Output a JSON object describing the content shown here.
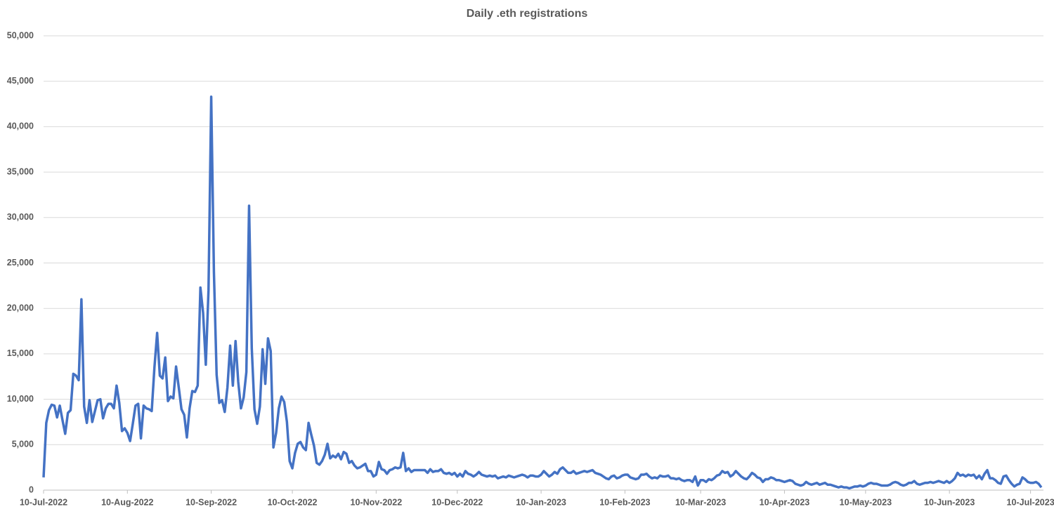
{
  "chart_data": {
    "type": "line",
    "title": "Daily .eth registrations",
    "x": [
      "2022-07-10",
      "2022-07-11",
      "2022-07-12",
      "2022-07-13",
      "2022-07-14",
      "2022-07-15",
      "2022-07-16",
      "2022-07-17",
      "2022-07-18",
      "2022-07-19",
      "2022-07-20",
      "2022-07-21",
      "2022-07-22",
      "2022-07-23",
      "2022-07-24",
      "2022-07-25",
      "2022-07-26",
      "2022-07-27",
      "2022-07-28",
      "2022-07-29",
      "2022-07-30",
      "2022-07-31",
      "2022-08-01",
      "2022-08-02",
      "2022-08-03",
      "2022-08-04",
      "2022-08-05",
      "2022-08-06",
      "2022-08-07",
      "2022-08-08",
      "2022-08-09",
      "2022-08-10",
      "2022-08-11",
      "2022-08-12",
      "2022-08-13",
      "2022-08-14",
      "2022-08-15",
      "2022-08-16",
      "2022-08-17",
      "2022-08-18",
      "2022-08-19",
      "2022-08-20",
      "2022-08-21",
      "2022-08-22",
      "2022-08-23",
      "2022-08-24",
      "2022-08-25",
      "2022-08-26",
      "2022-08-27",
      "2022-08-28",
      "2022-08-29",
      "2022-08-30",
      "2022-08-31",
      "2022-09-01",
      "2022-09-02",
      "2022-09-03",
      "2022-09-04",
      "2022-09-05",
      "2022-09-06",
      "2022-09-07",
      "2022-09-08",
      "2022-09-09",
      "2022-09-10",
      "2022-09-11",
      "2022-09-12",
      "2022-09-13",
      "2022-09-14",
      "2022-09-15",
      "2022-09-16",
      "2022-09-17",
      "2022-09-18",
      "2022-09-19",
      "2022-09-20",
      "2022-09-21",
      "2022-09-22",
      "2022-09-23",
      "2022-09-24",
      "2022-09-25",
      "2022-09-26",
      "2022-09-27",
      "2022-09-28",
      "2022-09-29",
      "2022-09-30",
      "2022-10-01",
      "2022-10-02",
      "2022-10-03",
      "2022-10-04",
      "2022-10-05",
      "2022-10-06",
      "2022-10-07",
      "2022-10-08",
      "2022-10-09",
      "2022-10-10",
      "2022-10-11",
      "2022-10-12",
      "2022-10-13",
      "2022-10-14",
      "2022-10-15",
      "2022-10-16",
      "2022-10-17",
      "2022-10-18",
      "2022-10-19",
      "2022-10-20",
      "2022-10-21",
      "2022-10-22",
      "2022-10-23",
      "2022-10-24",
      "2022-10-25",
      "2022-10-26",
      "2022-10-27",
      "2022-10-28",
      "2022-10-29",
      "2022-10-30",
      "2022-10-31",
      "2022-11-01",
      "2022-11-02",
      "2022-11-03",
      "2022-11-04",
      "2022-11-05",
      "2022-11-06",
      "2022-11-07",
      "2022-11-08",
      "2022-11-09",
      "2022-11-10",
      "2022-11-11",
      "2022-11-12",
      "2022-11-13",
      "2022-11-14",
      "2022-11-15",
      "2022-11-16",
      "2022-11-17",
      "2022-11-18",
      "2022-11-19",
      "2022-11-20",
      "2022-11-21",
      "2022-11-22",
      "2022-11-23",
      "2022-11-24",
      "2022-11-25",
      "2022-11-26",
      "2022-11-27",
      "2022-11-28",
      "2022-11-29",
      "2022-11-30",
      "2022-12-01",
      "2022-12-02",
      "2022-12-03",
      "2022-12-04",
      "2022-12-05",
      "2022-12-06",
      "2022-12-07",
      "2022-12-08",
      "2022-12-09",
      "2022-12-10",
      "2022-12-11",
      "2022-12-12",
      "2022-12-13",
      "2022-12-14",
      "2022-12-15",
      "2022-12-16",
      "2022-12-17",
      "2022-12-18",
      "2022-12-19",
      "2022-12-20",
      "2022-12-21",
      "2022-12-22",
      "2022-12-23",
      "2022-12-24",
      "2022-12-25",
      "2022-12-26",
      "2022-12-27",
      "2022-12-28",
      "2022-12-29",
      "2022-12-30",
      "2022-12-31",
      "2023-01-01",
      "2023-01-02",
      "2023-01-03",
      "2023-01-04",
      "2023-01-05",
      "2023-01-06",
      "2023-01-07",
      "2023-01-08",
      "2023-01-09",
      "2023-01-10",
      "2023-01-11",
      "2023-01-12",
      "2023-01-13",
      "2023-01-14",
      "2023-01-15",
      "2023-01-16",
      "2023-01-17",
      "2023-01-18",
      "2023-01-19",
      "2023-01-20",
      "2023-01-21",
      "2023-01-22",
      "2023-01-23",
      "2023-01-24",
      "2023-01-25",
      "2023-01-26",
      "2023-01-27",
      "2023-01-28",
      "2023-01-29",
      "2023-01-30",
      "2023-01-31",
      "2023-02-01",
      "2023-02-02",
      "2023-02-03",
      "2023-02-04",
      "2023-02-05",
      "2023-02-06",
      "2023-02-07",
      "2023-02-08",
      "2023-02-09",
      "2023-02-10",
      "2023-02-11",
      "2023-02-12",
      "2023-02-13",
      "2023-02-14",
      "2023-02-15",
      "2023-02-16",
      "2023-02-17",
      "2023-02-18",
      "2023-02-19",
      "2023-02-20",
      "2023-02-21",
      "2023-02-22",
      "2023-02-23",
      "2023-02-24",
      "2023-02-25",
      "2023-02-26",
      "2023-02-27",
      "2023-02-28",
      "2023-03-01",
      "2023-03-02",
      "2023-03-03",
      "2023-03-04",
      "2023-03-05",
      "2023-03-06",
      "2023-03-07",
      "2023-03-08",
      "2023-03-09",
      "2023-03-10",
      "2023-03-11",
      "2023-03-12",
      "2023-03-13",
      "2023-03-14",
      "2023-03-15",
      "2023-03-16",
      "2023-03-17",
      "2023-03-18",
      "2023-03-19",
      "2023-03-20",
      "2023-03-21",
      "2023-03-22",
      "2023-03-23",
      "2023-03-24",
      "2023-03-25",
      "2023-03-26",
      "2023-03-27",
      "2023-03-28",
      "2023-03-29",
      "2023-03-30",
      "2023-03-31",
      "2023-04-01",
      "2023-04-02",
      "2023-04-03",
      "2023-04-04",
      "2023-04-05",
      "2023-04-06",
      "2023-04-07",
      "2023-04-08",
      "2023-04-09",
      "2023-04-10",
      "2023-04-11",
      "2023-04-12",
      "2023-04-13",
      "2023-04-14",
      "2023-04-15",
      "2023-04-16",
      "2023-04-17",
      "2023-04-18",
      "2023-04-19",
      "2023-04-20",
      "2023-04-21",
      "2023-04-22",
      "2023-04-23",
      "2023-04-24",
      "2023-04-25",
      "2023-04-26",
      "2023-04-27",
      "2023-04-28",
      "2023-04-29",
      "2023-04-30",
      "2023-05-01",
      "2023-05-02",
      "2023-05-03",
      "2023-05-04",
      "2023-05-05",
      "2023-05-06",
      "2023-05-07",
      "2023-05-08",
      "2023-05-09",
      "2023-05-10",
      "2023-05-11",
      "2023-05-12",
      "2023-05-13",
      "2023-05-14",
      "2023-05-15",
      "2023-05-16",
      "2023-05-17",
      "2023-05-18",
      "2023-05-19",
      "2023-05-20",
      "2023-05-21",
      "2023-05-22",
      "2023-05-23",
      "2023-05-24",
      "2023-05-25",
      "2023-05-26",
      "2023-05-27",
      "2023-05-28",
      "2023-05-29",
      "2023-05-30",
      "2023-05-31",
      "2023-06-01",
      "2023-06-02",
      "2023-06-03",
      "2023-06-04",
      "2023-06-05",
      "2023-06-06",
      "2023-06-07",
      "2023-06-08",
      "2023-06-09",
      "2023-06-10",
      "2023-06-11",
      "2023-06-12",
      "2023-06-13",
      "2023-06-14",
      "2023-06-15",
      "2023-06-16",
      "2023-06-17",
      "2023-06-18",
      "2023-06-19",
      "2023-06-20",
      "2023-06-21",
      "2023-06-22",
      "2023-06-23",
      "2023-06-24",
      "2023-06-25",
      "2023-06-26",
      "2023-06-27",
      "2023-06-28",
      "2023-06-29",
      "2023-06-30",
      "2023-07-01",
      "2023-07-02",
      "2023-07-03",
      "2023-07-04",
      "2023-07-05",
      "2023-07-06",
      "2023-07-07",
      "2023-07-08",
      "2023-07-09",
      "2023-07-10",
      "2023-07-11",
      "2023-07-12",
      "2023-07-13",
      "2023-07-14"
    ],
    "values": [
      1400,
      7400,
      8800,
      9400,
      9300,
      8000,
      9300,
      7700,
      6200,
      8500,
      8800,
      12800,
      12600,
      12100,
      21000,
      9200,
      7400,
      9900,
      7500,
      8700,
      9900,
      10000,
      7900,
      9000,
      9500,
      9500,
      9000,
      11500,
      9600,
      6500,
      6800,
      6300,
      5400,
      7300,
      9300,
      9500,
      5700,
      9300,
      9000,
      8900,
      8700,
      13500,
      17300,
      12600,
      12300,
      14600,
      9800,
      10300,
      10100,
      13600,
      11300,
      8900,
      8300,
      5800,
      9000,
      10900,
      10800,
      11500,
      22300,
      19500,
      13800,
      22000,
      43300,
      24000,
      12700,
      9600,
      9900,
      8600,
      11300,
      15900,
      11500,
      16400,
      11900,
      9000,
      10200,
      13000,
      31300,
      15600,
      8900,
      7300,
      9200,
      15500,
      11700,
      16700,
      15300,
      4700,
      6300,
      9000,
      10300,
      9700,
      7500,
      3200,
      2400,
      4100,
      5100,
      5300,
      4700,
      4400,
      7400,
      6100,
      4900,
      3000,
      2800,
      3200,
      3900,
      5100,
      3500,
      3800,
      3600,
      4000,
      3400,
      4200,
      4000,
      3000,
      3200,
      2700,
      2400,
      2500,
      2700,
      2900,
      2100,
      2100,
      1500,
      1700,
      3100,
      2300,
      2200,
      1800,
      2200,
      2300,
      2500,
      2400,
      2500,
      4100,
      2100,
      2400,
      2000,
      2200,
      2200,
      2200,
      2200,
      2200,
      1900,
      2300,
      2000,
      2100,
      2100,
      2300,
      1900,
      1800,
      1900,
      1700,
      1900,
      1500,
      1800,
      1500,
      2100,
      1800,
      1700,
      1500,
      1700,
      2000,
      1700,
      1600,
      1500,
      1600,
      1500,
      1600,
      1300,
      1400,
      1500,
      1400,
      1600,
      1500,
      1400,
      1500,
      1600,
      1700,
      1600,
      1400,
      1600,
      1600,
      1500,
      1500,
      1700,
      2100,
      1800,
      1500,
      1700,
      2000,
      1800,
      2300,
      2500,
      2200,
      1900,
      1900,
      2100,
      1800,
      1900,
      2000,
      2100,
      2000,
      2100,
      2200,
      1900,
      1800,
      1700,
      1500,
      1300,
      1200,
      1500,
      1600,
      1300,
      1400,
      1600,
      1700,
      1700,
      1400,
      1300,
      1200,
      1300,
      1700,
      1700,
      1800,
      1500,
      1300,
      1400,
      1300,
      1600,
      1500,
      1500,
      1600,
      1300,
      1300,
      1200,
      1300,
      1100,
      1000,
      1100,
      1100,
      900,
      1500,
      500,
      1100,
      1100,
      900,
      1200,
      1100,
      1300,
      1600,
      1700,
      2100,
      1900,
      2000,
      1500,
      1700,
      2100,
      1800,
      1500,
      1300,
      1200,
      1500,
      1900,
      1700,
      1400,
      1300,
      900,
      1200,
      1200,
      1400,
      1300,
      1100,
      1100,
      1000,
      900,
      1000,
      1100,
      1000,
      700,
      600,
      500,
      600,
      900,
      700,
      600,
      700,
      800,
      600,
      700,
      800,
      600,
      600,
      500,
      400,
      300,
      400,
      300,
      300,
      200,
      300,
      400,
      400,
      500,
      400,
      500,
      700,
      800,
      700,
      700,
      600,
      500,
      500,
      500,
      600,
      800,
      900,
      800,
      600,
      500,
      600,
      800,
      800,
      1000,
      700,
      600,
      700,
      800,
      800,
      900,
      800,
      900,
      1000,
      900,
      800,
      1000,
      800,
      1000,
      1300,
      1900,
      1600,
      1700,
      1500,
      1700,
      1600,
      1700,
      1300,
      1600,
      1200,
      1800,
      2200,
      1300,
      1300,
      1100,
      800,
      700,
      1500,
      1600,
      1100,
      700,
      400,
      600,
      700,
      1400,
      1200,
      900,
      800,
      800,
      900,
      700,
      300
    ],
    "color": "#4472c4",
    "xlim": [
      "2022-07-10",
      "2023-07-14"
    ],
    "xticks": [
      {
        "value": "2022-07-10",
        "label": "10-Jul-2022"
      },
      {
        "value": "2022-08-10",
        "label": "10-Aug-2022"
      },
      {
        "value": "2022-09-10",
        "label": "10-Sep-2022"
      },
      {
        "value": "2022-10-10",
        "label": "10-Oct-2022"
      },
      {
        "value": "2022-11-10",
        "label": "10-Nov-2022"
      },
      {
        "value": "2022-12-10",
        "label": "10-Dec-2022"
      },
      {
        "value": "2023-01-10",
        "label": "10-Jan-2023"
      },
      {
        "value": "2023-02-10",
        "label": "10-Feb-2023"
      },
      {
        "value": "2023-03-10",
        "label": "10-Mar-2023"
      },
      {
        "value": "2023-04-10",
        "label": "10-Apr-2023"
      },
      {
        "value": "2023-05-10",
        "label": "10-May-2023"
      },
      {
        "value": "2023-06-10",
        "label": "10-Jun-2023"
      },
      {
        "value": "2023-07-10",
        "label": "10-Jul-2023"
      }
    ],
    "ylim": [
      0,
      50000
    ],
    "yticks": [
      0,
      {
        "value": 5000,
        "label": "5,000"
      },
      {
        "value": 10000,
        "label": "10,000"
      },
      {
        "value": 15000,
        "label": "15,000"
      },
      {
        "value": 20000,
        "label": "20,000"
      },
      {
        "value": 25000,
        "label": "25,000"
      },
      {
        "value": 30000,
        "label": "30,000"
      },
      {
        "value": 35000,
        "label": "35,000"
      },
      {
        "value": 40000,
        "label": "40,000"
      },
      {
        "value": 45000,
        "label": "45,000"
      },
      {
        "value": 50000,
        "label": "50,000"
      }
    ],
    "grid": true
  }
}
